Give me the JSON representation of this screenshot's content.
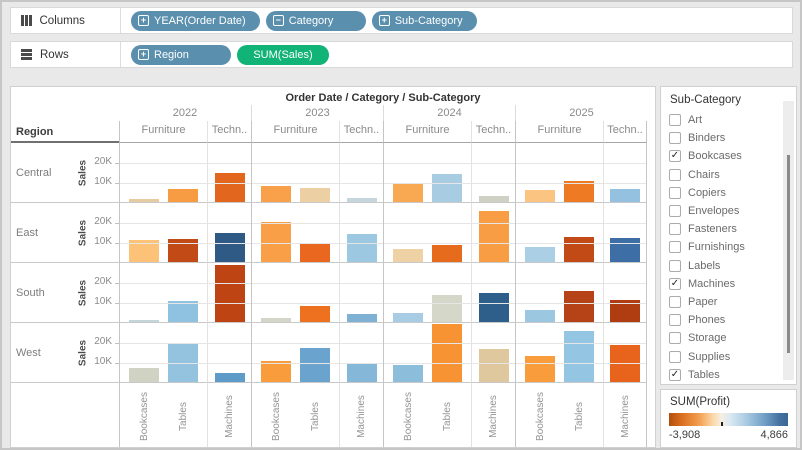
{
  "shelves": {
    "columns_label": "Columns",
    "rows_label": "Rows",
    "columns_pills": [
      {
        "label": "YEAR(Order Date)",
        "icon": "plus",
        "color": "blue"
      },
      {
        "label": "Category",
        "icon": "minus",
        "color": "blue"
      },
      {
        "label": "Sub-Category",
        "icon": "plus",
        "color": "blue"
      }
    ],
    "rows_pills": [
      {
        "label": "Region",
        "icon": "plus",
        "color": "blue"
      },
      {
        "label": "SUM(Sales)",
        "icon": "none",
        "color": "green"
      }
    ]
  },
  "chart_data": {
    "type": "bar",
    "title": "Order Date / Category / Sub-Category",
    "region_header": "Region",
    "axis_label": "Sales",
    "y_ticks": [
      "20K",
      "10K"
    ],
    "y_max": 30000,
    "grid": true,
    "years": [
      "2022",
      "2023",
      "2024",
      "2025"
    ],
    "category_labels": [
      "Furniture",
      "Techn.."
    ],
    "bar_labels": [
      "Bookcases",
      "Tables",
      "Machines"
    ],
    "color_encoding": "SUM(Profit): orange = negative, blue = positive",
    "rows": [
      {
        "region": "Central",
        "values": [
          1500,
          6500,
          14500,
          8200,
          7000,
          2200,
          8800,
          14000,
          3200,
          6200,
          10500,
          6500
        ],
        "colors": [
          "#e7cba1",
          "#f89c44",
          "#e2661d",
          "#f9a04a",
          "#ecd0a4",
          "#c5d7dd",
          "#f9a952",
          "#a8cce2",
          "#cfd1c5",
          "#fbc581",
          "#ee7a23",
          "#93c1df"
        ]
      },
      {
        "region": "East",
        "values": [
          11000,
          11500,
          14500,
          20000,
          9500,
          14000,
          6500,
          8500,
          25500,
          7500,
          12500,
          12200
        ],
        "colors": [
          "#fbc278",
          "#c14a16",
          "#2e5a85",
          "#f99f48",
          "#e9671e",
          "#9cc8e1",
          "#eed2a6",
          "#e76b1d",
          "#f99d45",
          "#abd0e6",
          "#c14a16",
          "#3d6ea5"
        ]
      },
      {
        "region": "South",
        "values": [
          1000,
          10500,
          28500,
          1800,
          8000,
          3800,
          4500,
          13300,
          14500,
          6000,
          15500,
          11000
        ],
        "colors": [
          "#c3d5da",
          "#8fc2e1",
          "#bf4413",
          "#d4d6ca",
          "#ee711f",
          "#7fb1d5",
          "#a7cce3",
          "#d5d7c8",
          "#2e5f8a",
          "#9cc7e0",
          "#b64317",
          "#b03d12"
        ]
      },
      {
        "region": "West",
        "values": [
          7000,
          19500,
          4500,
          10500,
          17000,
          9000,
          8500,
          29000,
          16500,
          13000,
          25500,
          18500
        ],
        "colors": [
          "#d0d2c4",
          "#94c3df",
          "#5e9bc9",
          "#f89c3c",
          "#6aa3cd",
          "#85b7d9",
          "#8cbdda",
          "#f79332",
          "#dfc89e",
          "#f89c3c",
          "#94c5e2",
          "#e8641c"
        ]
      }
    ]
  },
  "filter": {
    "title": "Sub-Category",
    "items": [
      {
        "label": "Art",
        "checked": false
      },
      {
        "label": "Binders",
        "checked": false
      },
      {
        "label": "Bookcases",
        "checked": true
      },
      {
        "label": "Chairs",
        "checked": false
      },
      {
        "label": "Copiers",
        "checked": false
      },
      {
        "label": "Envelopes",
        "checked": false
      },
      {
        "label": "Fasteners",
        "checked": false
      },
      {
        "label": "Furnishings",
        "checked": false
      },
      {
        "label": "Labels",
        "checked": false
      },
      {
        "label": "Machines",
        "checked": true
      },
      {
        "label": "Paper",
        "checked": false
      },
      {
        "label": "Phones",
        "checked": false
      },
      {
        "label": "Storage",
        "checked": false
      },
      {
        "label": "Supplies",
        "checked": false
      },
      {
        "label": "Tables",
        "checked": true
      }
    ]
  },
  "legend": {
    "title": "SUM(Profit)",
    "min": "-3,908",
    "max": "4,866",
    "gradient_left": "#b24f0c",
    "gradient_right": "#3a6694"
  },
  "checkmark_glyph": "✓"
}
